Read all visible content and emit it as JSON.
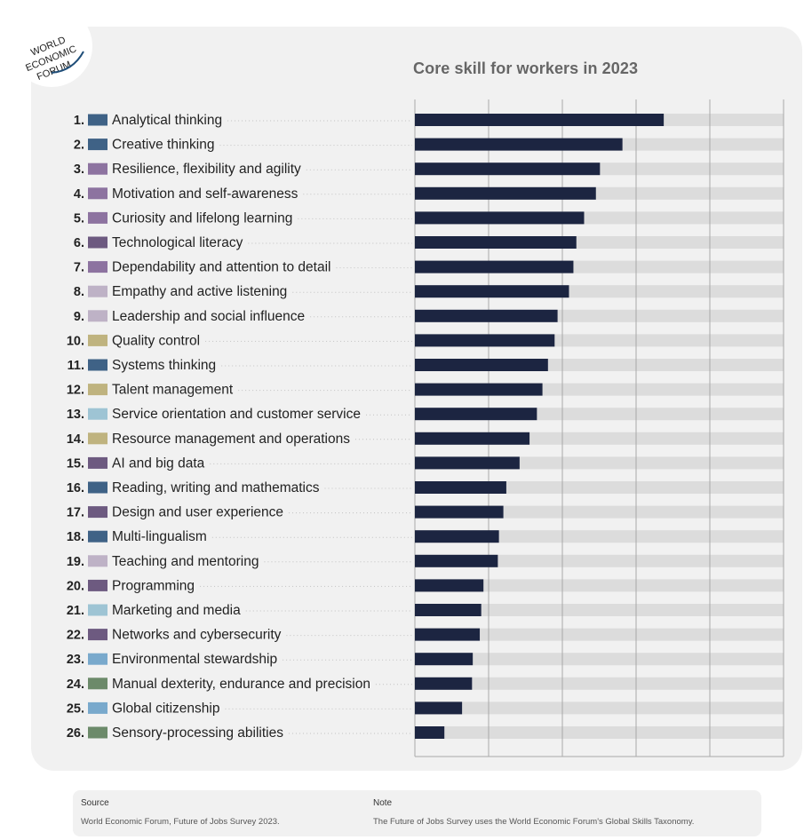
{
  "logo": {
    "lines": [
      "WORLD",
      "ECONOMIC",
      "FORUM"
    ],
    "color": "#1f4e79"
  },
  "colors": {
    "bar": "#1c2541",
    "track": "#dcdcdc",
    "grid": "#a9a9a9",
    "cognitive": "#3f6286",
    "selfefficacy": "#8d73a0",
    "engagement": "#beb2c6",
    "management": "#bfb37f",
    "technology": "#6d5a80",
    "customer": "#9ec4d4",
    "ethics": "#79a9cc",
    "physical": "#6c8a6a"
  },
  "chart_data": {
    "type": "bar",
    "orientation": "horizontal",
    "title": "Core skill for workers in 2023",
    "xlim": [
      0,
      1
    ],
    "gridlines": [
      0,
      0.2,
      0.4,
      0.6,
      0.8,
      1.0
    ],
    "skills": [
      {
        "rank": "1.",
        "label": "Analytical thinking",
        "value": 0.675,
        "color": "#3f6286"
      },
      {
        "rank": "2.",
        "label": "Creative thinking",
        "value": 0.563,
        "color": "#3f6286"
      },
      {
        "rank": "3.",
        "label": "Resilience, flexibility and agility",
        "value": 0.502,
        "color": "#8d73a0"
      },
      {
        "rank": "4.",
        "label": "Motivation and self-awareness",
        "value": 0.491,
        "color": "#8d73a0"
      },
      {
        "rank": "5.",
        "label": "Curiosity and lifelong learning",
        "value": 0.459,
        "color": "#8d73a0"
      },
      {
        "rank": "6.",
        "label": "Technological literacy",
        "value": 0.438,
        "color": "#6d5a80"
      },
      {
        "rank": "7.",
        "label": "Dependability and attention to detail",
        "value": 0.43,
        "color": "#8d73a0"
      },
      {
        "rank": "8.",
        "label": "Empathy and active listening",
        "value": 0.418,
        "color": "#beb2c6"
      },
      {
        "rank": "9.",
        "label": "Leadership and social influence",
        "value": 0.387,
        "color": "#beb2c6"
      },
      {
        "rank": "10.",
        "label": "Quality control",
        "value": 0.379,
        "color": "#bfb37f"
      },
      {
        "rank": "11.",
        "label": "Systems thinking",
        "value": 0.361,
        "color": "#3f6286"
      },
      {
        "rank": "12.",
        "label": "Talent management",
        "value": 0.346,
        "color": "#bfb37f"
      },
      {
        "rank": "13.",
        "label": "Service orientation and customer service",
        "value": 0.331,
        "color": "#9ec4d4"
      },
      {
        "rank": "14.",
        "label": "Resource management and operations",
        "value": 0.311,
        "color": "#bfb37f"
      },
      {
        "rank": "15.",
        "label": "AI and big data",
        "value": 0.284,
        "color": "#6d5a80"
      },
      {
        "rank": "16.",
        "label": "Reading, writing and mathematics",
        "value": 0.248,
        "color": "#3f6286"
      },
      {
        "rank": "17.",
        "label": "Design and user experience",
        "value": 0.24,
        "color": "#6d5a80"
      },
      {
        "rank": "18.",
        "label": "Multi-lingualism",
        "value": 0.228,
        "color": "#3f6286"
      },
      {
        "rank": "19.",
        "label": "Teaching and mentoring",
        "value": 0.225,
        "color": "#beb2c6"
      },
      {
        "rank": "20.",
        "label": "Programming",
        "value": 0.186,
        "color": "#6d5a80"
      },
      {
        "rank": "21.",
        "label": "Marketing and media",
        "value": 0.18,
        "color": "#9ec4d4"
      },
      {
        "rank": "22.",
        "label": "Networks and cybersecurity",
        "value": 0.176,
        "color": "#6d5a80"
      },
      {
        "rank": "23.",
        "label": "Environmental stewardship",
        "value": 0.157,
        "color": "#79a9cc"
      },
      {
        "rank": "24.",
        "label": "Manual dexterity, endurance and precision",
        "value": 0.155,
        "color": "#6c8a6a"
      },
      {
        "rank": "25.",
        "label": "Global citizenship",
        "value": 0.128,
        "color": "#79a9cc"
      },
      {
        "rank": "26.",
        "label": "Sensory-processing abilities",
        "value": 0.08,
        "color": "#6c8a6a"
      }
    ]
  },
  "footer": {
    "source_heading": "Source",
    "source_text": "World Economic Forum, Future of Jobs Survey 2023.",
    "note_heading": "Note",
    "note_text": "The Future of Jobs Survey uses the World Economic Forum's Global Skills Taxonomy."
  }
}
